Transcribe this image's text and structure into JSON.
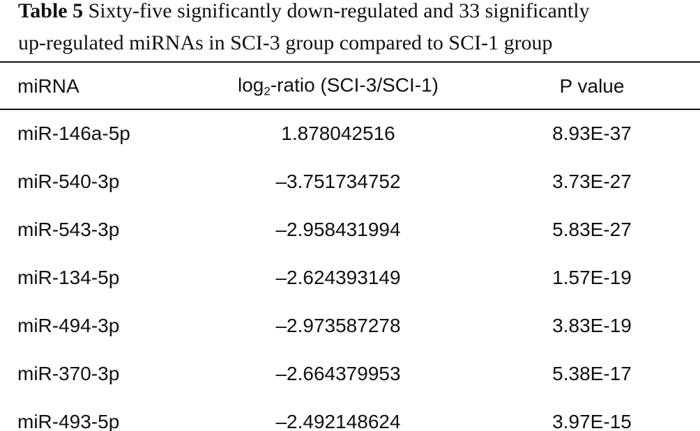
{
  "caption": {
    "label": "Table 5",
    "lines": [
      "Sixty-five significantly down-regulated and 33 significantly",
      "up-regulated miRNAs in SCI-3 group compared to SCI-1 group"
    ]
  },
  "table": {
    "header": {
      "mirna": "miRNA",
      "ratio": {
        "base": "log",
        "sub": "2",
        "rest": "-ratio (SCI-3/SCI-1)"
      },
      "p": "P value"
    },
    "rows": [
      [
        "miR-146a-5p",
        "1.878042516",
        "8.93E-37"
      ],
      [
        "miR-540-3p",
        "–3.751734752",
        "3.73E-27"
      ],
      [
        "miR-543-3p",
        "–2.958431994",
        "5.83E-27"
      ],
      [
        "miR-134-5p",
        "–2.624393149",
        "1.57E-19"
      ],
      [
        "miR-494-3p",
        "–2.973587278",
        "3.83E-19"
      ],
      [
        "miR-370-3p",
        "–2.664379953",
        "5.38E-17"
      ],
      [
        "miR-493-5p",
        "–2.492148624",
        "3.97E-15"
      ]
    ]
  }
}
